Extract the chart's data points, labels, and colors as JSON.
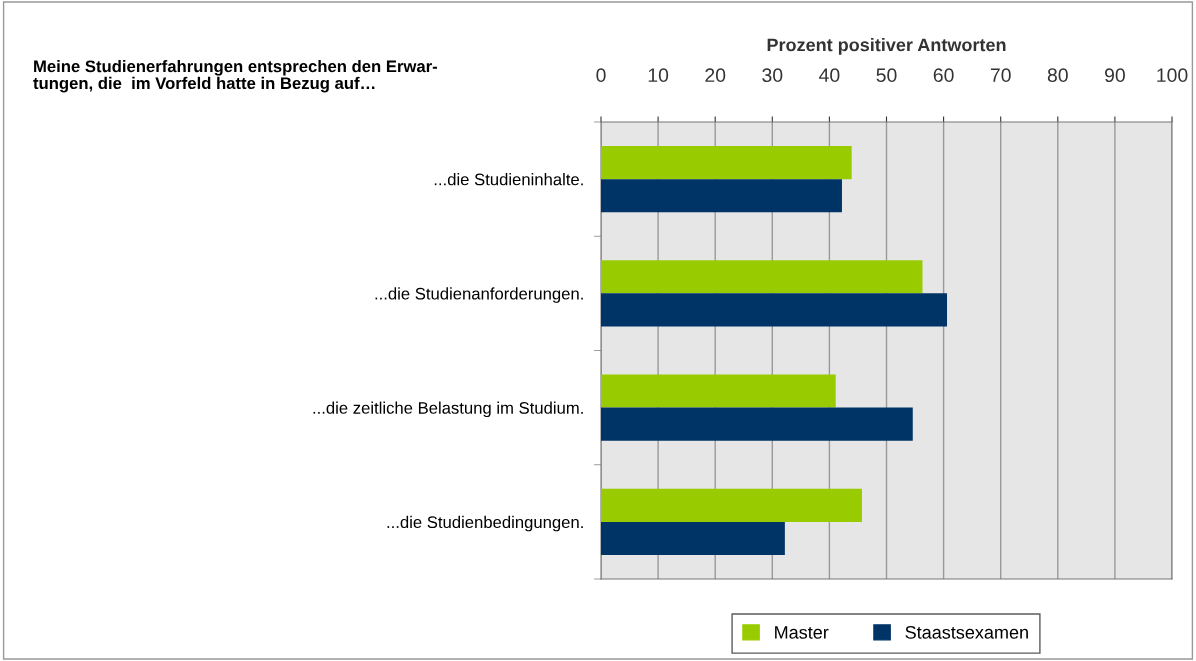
{
  "chart_data": {
    "type": "bar",
    "orientation": "horizontal",
    "title": "Meine Studienerfahrungen entsprechen den Erwar-\ntungen, die  im Vorfeld hatte in Bezug auf…",
    "xlabel": "Prozent positiver Antworten",
    "categories": [
      "...die Studieninhalte.",
      "...die Studienanforderungen.",
      "...die zeitliche Belastung im Studium.",
      "...die Studienbedingungen."
    ],
    "series": [
      {
        "name": "Master",
        "color": "#99cc00",
        "values": [
          43.9,
          56.3,
          41.1,
          45.7
        ]
      },
      {
        "name": "Staastsexamen",
        "color": "#003366",
        "values": [
          42.2,
          60.6,
          54.6,
          32.2
        ]
      }
    ],
    "xlim": [
      0,
      100
    ],
    "xticks": [
      0,
      10,
      20,
      30,
      40,
      50,
      60,
      70,
      80,
      90,
      100
    ],
    "grid": "x",
    "legend": "bottom"
  }
}
